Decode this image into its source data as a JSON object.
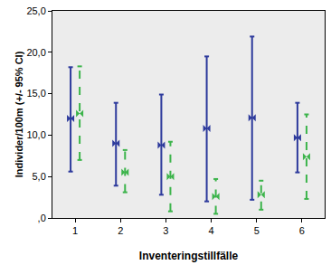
{
  "chart_data": {
    "type": "scatter",
    "x_label": "Inventeringstillfälle",
    "y_label": "Individer/100m (+/- 95% CI)",
    "categories": [
      "1",
      "2",
      "3",
      "4",
      "5",
      "6"
    ],
    "ylim": [
      0,
      25
    ],
    "yticks": [
      {
        "value": 0,
        "label": ",0"
      },
      {
        "value": 5,
        "label": "5,0"
      },
      {
        "value": 10,
        "label": "10,0"
      },
      {
        "value": 15,
        "label": "15,0"
      },
      {
        "value": 20,
        "label": "20,0"
      },
      {
        "value": 25,
        "label": "25,0"
      }
    ],
    "grid": false,
    "series": [
      {
        "color": "#2d3a9c",
        "marker": "bowtie",
        "line_style": "solid",
        "values": [
          12.0,
          9.0,
          8.8,
          10.8,
          12.1,
          9.7
        ],
        "lower": [
          5.6,
          3.9,
          2.8,
          2.0,
          2.2,
          5.5
        ],
        "upper": [
          18.2,
          13.9,
          14.9,
          19.5,
          21.9,
          13.9
        ]
      },
      {
        "color": "#3cb44b",
        "marker": "bowtie",
        "line_style": "dash",
        "values": [
          12.6,
          5.5,
          5.0,
          2.6,
          2.8,
          7.4
        ],
        "lower": [
          7.0,
          3.1,
          0.8,
          0.5,
          1.0,
          2.3
        ],
        "upper": [
          18.3,
          8.2,
          9.2,
          4.7,
          4.5,
          12.5
        ]
      }
    ]
  }
}
